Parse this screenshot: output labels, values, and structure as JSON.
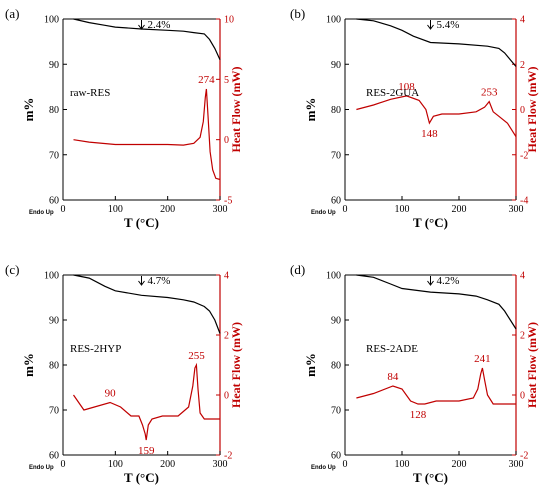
{
  "chart_data": [
    {
      "type": "line",
      "panel_label": "(a)",
      "sample": "raw-RES",
      "xlabel": "T (°C)",
      "ylabel_left": "m%",
      "ylabel_right": "Heat Flow (mW)",
      "endo_label": "Endo Up",
      "xlim": [
        0,
        300
      ],
      "xticks": [
        "0",
        "100",
        "200",
        "300"
      ],
      "ylim_left": [
        60,
        100
      ],
      "yticks_left": [
        "60",
        "70",
        "80",
        "90",
        "100"
      ],
      "ylim_right": [
        -5,
        10
      ],
      "yticks_right": [
        "-5",
        "0",
        "5",
        "10"
      ],
      "mass_loss": "2.4%",
      "tga": {
        "name": "m%",
        "x": [
          20,
          50,
          80,
          100,
          150,
          200,
          230,
          250,
          270,
          280,
          290,
          300
        ],
        "y": [
          100,
          99.2,
          98.6,
          98.2,
          97.8,
          97.5,
          97.3,
          97.0,
          96.7,
          95.5,
          93.5,
          91.0
        ]
      },
      "dsc": {
        "name": "Heat Flow",
        "x": [
          20,
          50,
          100,
          150,
          200,
          230,
          250,
          262,
          268,
          272,
          274,
          277,
          281,
          286,
          292,
          300
        ],
        "y": [
          0,
          -0.2,
          -0.4,
          -0.4,
          -0.4,
          -0.45,
          -0.3,
          0.2,
          1.5,
          3.5,
          4.2,
          2,
          -1,
          -2.5,
          -3.2,
          -3.3
        ]
      },
      "peaks": [
        {
          "label": "274",
          "x": 274,
          "y": 4.2
        }
      ]
    },
    {
      "type": "line",
      "panel_label": "(b)",
      "sample": "RES-2GUA",
      "xlabel": "T (°C)",
      "ylabel_left": "m%",
      "ylabel_right": "Heat Flow (mW)",
      "endo_label": "Endo Up",
      "xlim": [
        0,
        300
      ],
      "xticks": [
        "0",
        "100",
        "200",
        "300"
      ],
      "ylim_left": [
        60,
        100
      ],
      "yticks_left": [
        "60",
        "70",
        "80",
        "90",
        "100"
      ],
      "ylim_right": [
        -4,
        4
      ],
      "yticks_right": [
        "-4",
        "-2",
        "0",
        "2",
        "4"
      ],
      "mass_loss": "5.4%",
      "tga": {
        "name": "m%",
        "x": [
          20,
          50,
          80,
          100,
          120,
          150,
          200,
          250,
          270,
          280,
          290,
          300
        ],
        "y": [
          100,
          99.6,
          98.5,
          97.5,
          96.2,
          94.8,
          94.5,
          94.0,
          93.5,
          92.5,
          91.0,
          89.5
        ]
      },
      "dsc": {
        "name": "Heat Flow",
        "x": [
          20,
          50,
          80,
          108,
          130,
          142,
          148,
          155,
          170,
          200,
          230,
          245,
          253,
          260,
          270,
          285,
          300
        ],
        "y": [
          0,
          0.2,
          0.45,
          0.6,
          0.4,
          0,
          -0.6,
          -0.3,
          -0.2,
          -0.2,
          -0.1,
          0.1,
          0.35,
          -0.1,
          -0.3,
          -0.6,
          -1.2
        ]
      },
      "peaks": [
        {
          "label": "108",
          "x": 108,
          "y": 0.6
        },
        {
          "label": "148",
          "x": 148,
          "y": -0.6
        },
        {
          "label": "253",
          "x": 253,
          "y": 0.35
        }
      ]
    },
    {
      "type": "line",
      "panel_label": "(c)",
      "sample": "RES-2HYP",
      "xlabel": "T (°C)",
      "ylabel_left": "m%",
      "ylabel_right": "Heat Flow (mW)",
      "endo_label": "Endo Up",
      "xlim": [
        0,
        300
      ],
      "xticks": [
        "0",
        "100",
        "200",
        "300"
      ],
      "ylim_left": [
        60,
        100
      ],
      "yticks_left": [
        "60",
        "70",
        "80",
        "90",
        "100"
      ],
      "ylim_right": [
        -2,
        4
      ],
      "yticks_right": [
        "-2",
        "0",
        "2",
        "4"
      ],
      "mass_loss": "4.7%",
      "tga": {
        "name": "m%",
        "x": [
          20,
          50,
          80,
          100,
          150,
          200,
          230,
          250,
          270,
          280,
          290,
          300
        ],
        "y": [
          100,
          99.3,
          97.5,
          96.5,
          95.5,
          95.0,
          94.5,
          94.0,
          93.0,
          92.0,
          90.0,
          87.0
        ]
      },
      "dsc": {
        "name": "Heat Flow",
        "x": [
          20,
          40,
          60,
          90,
          110,
          130,
          145,
          152,
          157,
          159,
          163,
          170,
          190,
          220,
          240,
          248,
          252,
          255,
          258,
          262,
          270,
          285,
          300
        ],
        "y": [
          0,
          -0.5,
          -0.4,
          -0.25,
          -0.4,
          -0.7,
          -0.7,
          -1.0,
          -1.3,
          -1.5,
          -1.0,
          -0.8,
          -0.7,
          -0.7,
          -0.4,
          0.3,
          0.9,
          1.0,
          0.2,
          -0.6,
          -0.8,
          -0.8,
          -0.8
        ]
      },
      "peaks": [
        {
          "label": "90",
          "x": 90,
          "y": -0.25
        },
        {
          "label": "159",
          "x": 159,
          "y": -1.5
        },
        {
          "label": "255",
          "x": 255,
          "y": 1.0
        }
      ]
    },
    {
      "type": "line",
      "panel_label": "(d)",
      "sample": "RES-2ADE",
      "xlabel": "T (°C)",
      "ylabel_left": "m%",
      "ylabel_right": "Heat Flow (mW)",
      "endo_label": "Endo Up",
      "xlim": [
        0,
        300
      ],
      "xticks": [
        "0",
        "100",
        "200",
        "300"
      ],
      "ylim_left": [
        60,
        100
      ],
      "yticks_left": [
        "60",
        "70",
        "80",
        "90",
        "100"
      ],
      "ylim_right": [
        -2,
        4
      ],
      "yticks_right": [
        "-2",
        "0",
        "2",
        "4"
      ],
      "mass_loss": "4.2%",
      "tga": {
        "name": "m%",
        "x": [
          20,
          50,
          80,
          100,
          150,
          200,
          230,
          250,
          270,
          280,
          290,
          300
        ],
        "y": [
          100,
          99.5,
          98.0,
          97.0,
          96.2,
          95.8,
          95.3,
          94.5,
          93.5,
          92.0,
          90.0,
          88.0
        ]
      },
      "dsc": {
        "name": "Heat Flow",
        "x": [
          20,
          50,
          84,
          100,
          115,
          128,
          140,
          160,
          200,
          225,
          233,
          238,
          241,
          245,
          250,
          260,
          280,
          300
        ],
        "y": [
          -0.1,
          0.05,
          0.3,
          0.2,
          -0.2,
          -0.3,
          -0.3,
          -0.2,
          -0.2,
          -0.1,
          0.2,
          0.7,
          0.9,
          0.5,
          0,
          -0.3,
          -0.3,
          -0.3
        ]
      },
      "peaks": [
        {
          "label": "84",
          "x": 84,
          "y": 0.3
        },
        {
          "label": "128",
          "x": 128,
          "y": -0.3
        },
        {
          "label": "241",
          "x": 241,
          "y": 0.9
        }
      ]
    }
  ],
  "colors": {
    "tga": "#000000",
    "dsc": "#c00000",
    "axis_right": "#c00000"
  }
}
